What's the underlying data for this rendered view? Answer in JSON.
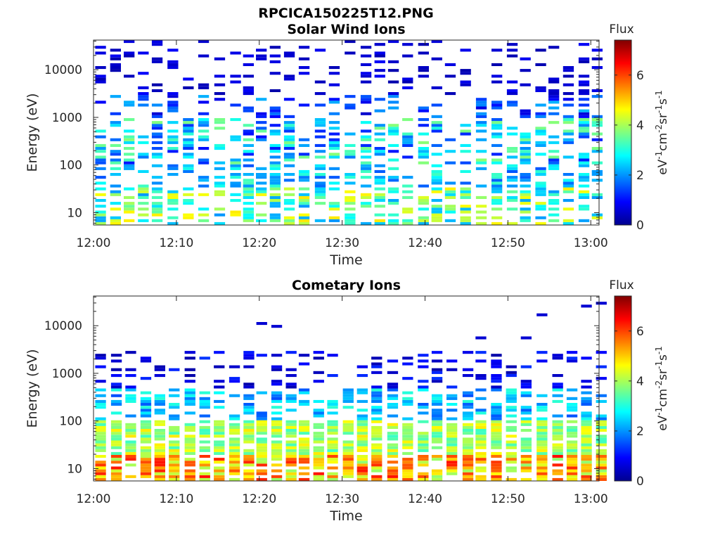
{
  "figure": {
    "title": "RPCICA150225T12.PNG"
  },
  "chart_data": [
    {
      "type": "heatmap",
      "title": "Solar Wind Ions",
      "xlabel": "Time",
      "ylabel": "Energy (eV)",
      "x_ticks": [
        "12:00",
        "12:10",
        "12:20",
        "12:30",
        "12:40",
        "12:50",
        "13:00"
      ],
      "x_range_minutes": [
        0,
        61
      ],
      "y_scale": "log",
      "y_ticks": [
        "10",
        "100",
        "1000",
        "10000"
      ],
      "y_tick_values": [
        10,
        100,
        1000,
        10000
      ],
      "y_range": [
        5.5,
        42000
      ],
      "colorbar": {
        "label": "Flux",
        "unit": "eV-1cm-2sr-1s-1",
        "ticks": [
          "0",
          "2",
          "4",
          "6"
        ],
        "range": [
          0,
          7.4
        ]
      },
      "description": "Sparse scattered flux; densest at 100-1000 eV with values 2-4, lower-energy band 8-30 eV with values 2-5; high energies mostly dark blue (~0.5)."
    },
    {
      "type": "heatmap",
      "title": "Cometary Ions",
      "xlabel": "Time",
      "ylabel": "Energy (eV)",
      "x_ticks": [
        "12:00",
        "12:10",
        "12:20",
        "12:30",
        "12:40",
        "12:50",
        "13:00"
      ],
      "x_range_minutes": [
        0,
        61
      ],
      "y_scale": "log",
      "y_ticks": [
        "10",
        "100",
        "1000",
        "10000"
      ],
      "y_tick_values": [
        10,
        100,
        1000,
        10000
      ],
      "y_range": [
        5.5,
        42000
      ],
      "colorbar": {
        "label": "Flux",
        "unit": "eV-1cm-2sr-1s-1",
        "ticks": [
          "0",
          "2",
          "4",
          "6"
        ],
        "range": [
          0,
          7.4
        ]
      },
      "description": "Strong flux below ~100 eV (values 4-6.5, yellow-orange), fading to 2-3 at 100-500 eV, dark blue (~0.5) at 1000-3000 eV."
    }
  ]
}
